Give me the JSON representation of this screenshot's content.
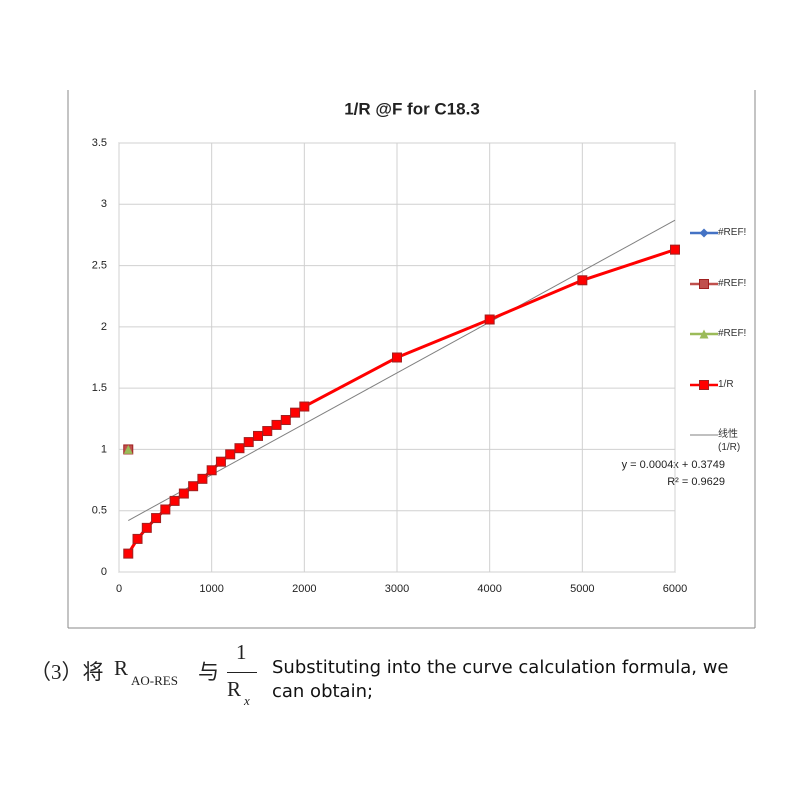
{
  "chart_data": {
    "type": "line",
    "title": "1/R @F for C18.3",
    "xlim": [
      0,
      6000
    ],
    "xticks": [
      0,
      1000,
      2000,
      3000,
      4000,
      5000,
      6000
    ],
    "ylim": [
      0,
      3.5
    ],
    "yticks": [
      0,
      0.5,
      1,
      1.5,
      2,
      2.5,
      3,
      3.5
    ],
    "grid": true,
    "legend": "right",
    "series": [
      {
        "name": "#REF!",
        "color": "#4472c4",
        "marker": "diamond",
        "x": [
          100
        ],
        "values": [
          1
        ]
      },
      {
        "name": "#REF!",
        "color": "#c0504d",
        "marker": "square",
        "x": [
          100
        ],
        "values": [
          1
        ]
      },
      {
        "name": "#REF!",
        "color": "#9bbb59",
        "marker": "triangle",
        "x": [
          100
        ],
        "values": [
          1
        ]
      },
      {
        "name": "1/R",
        "color": "#ff0000",
        "marker": "square",
        "x": [
          100,
          200,
          300,
          400,
          500,
          600,
          700,
          800,
          900,
          1000,
          1100,
          1200,
          1300,
          1400,
          1500,
          1600,
          1700,
          1800,
          1900,
          2000,
          3000,
          4000,
          5000,
          6000
        ],
        "values": [
          0.15,
          0.27,
          0.36,
          0.44,
          0.51,
          0.58,
          0.64,
          0.7,
          0.76,
          0.83,
          0.9,
          0.96,
          1.01,
          1.06,
          1.11,
          1.15,
          1.2,
          1.24,
          1.3,
          1.35,
          1.75,
          2.06,
          2.38,
          2.63
        ]
      },
      {
        "name": "线性 (1/R)",
        "color": "#808080",
        "x": [
          100,
          6000
        ],
        "values": [
          0.42,
          2.87
        ]
      }
    ],
    "annotations": [
      "y = 0.0004x + 0.3749",
      "R² = 0.9629"
    ]
  },
  "caption": {
    "prefix": "（3）将",
    "r1": "R",
    "r1_sub": "AO-RES",
    "conj": "与",
    "fraction_num": "1",
    "fraction_den": "R",
    "fraction_den_sub": "x",
    "text": "Substituting into the curve calculation formula, we can obtain;"
  }
}
